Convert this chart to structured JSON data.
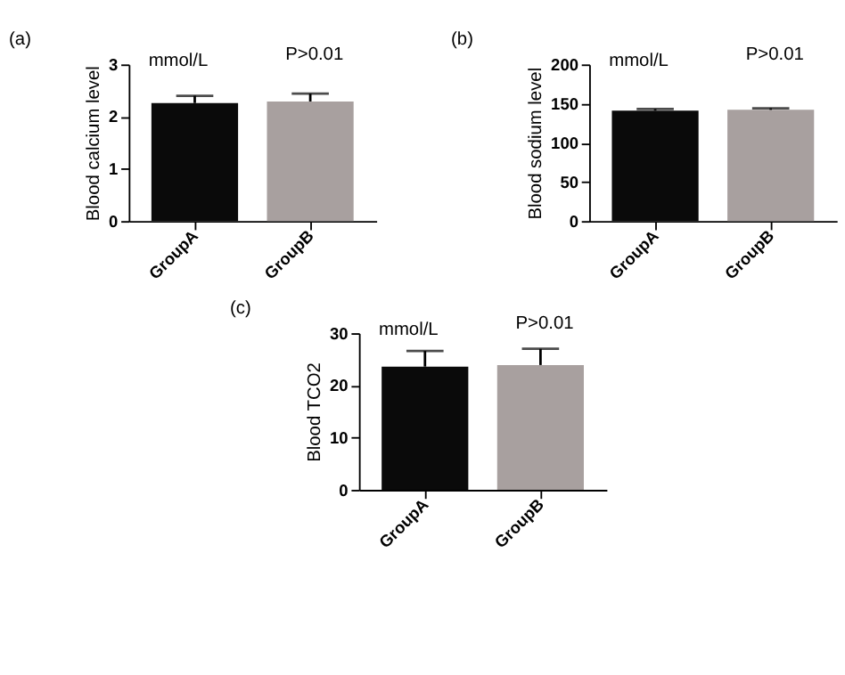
{
  "chart_data": [
    {
      "type": "bar",
      "title": "(a)",
      "ylabel": "Blood calcium level",
      "categories": [
        "GroupA",
        "GroupB"
      ],
      "values": [
        2.26,
        2.29
      ],
      "colors": [
        "#0a0a0a",
        "#a8a09f"
      ],
      "errors": [
        [
          2.26,
          2.4
        ],
        [
          2.29,
          2.44
        ]
      ],
      "ylim": [
        0,
        3
      ],
      "yticks": [
        0,
        1,
        2,
        3
      ],
      "grid": false,
      "annotations": [
        "mmol/L",
        "P>0.01"
      ]
    },
    {
      "type": "bar",
      "title": "(b)",
      "ylabel": "Blood sodium level",
      "categories": [
        "GroupA",
        "GroupB"
      ],
      "values": [
        141,
        142
      ],
      "colors": [
        "#0a0a0a",
        "#a8a09f"
      ],
      "errors": [
        [
          141,
          143
        ],
        [
          142,
          144
        ]
      ],
      "ylim": [
        0,
        200
      ],
      "yticks": [
        0,
        50,
        100,
        150,
        200
      ],
      "grid": false,
      "annotations": [
        "mmol/L",
        "P>0.01"
      ]
    },
    {
      "type": "bar",
      "title": "(c)",
      "ylabel": "Blood TCO2",
      "categories": [
        "GroupA",
        "GroupB"
      ],
      "values": [
        23.6,
        23.9
      ],
      "colors": [
        "#0a0a0a",
        "#a8a09f"
      ],
      "errors": [
        [
          23.6,
          26.6
        ],
        [
          23.9,
          27.0
        ]
      ],
      "ylim": [
        0,
        30
      ],
      "yticks": [
        0,
        10,
        20,
        30
      ],
      "grid": false,
      "annotations": [
        "mmol/L",
        "P>0.01"
      ]
    }
  ]
}
